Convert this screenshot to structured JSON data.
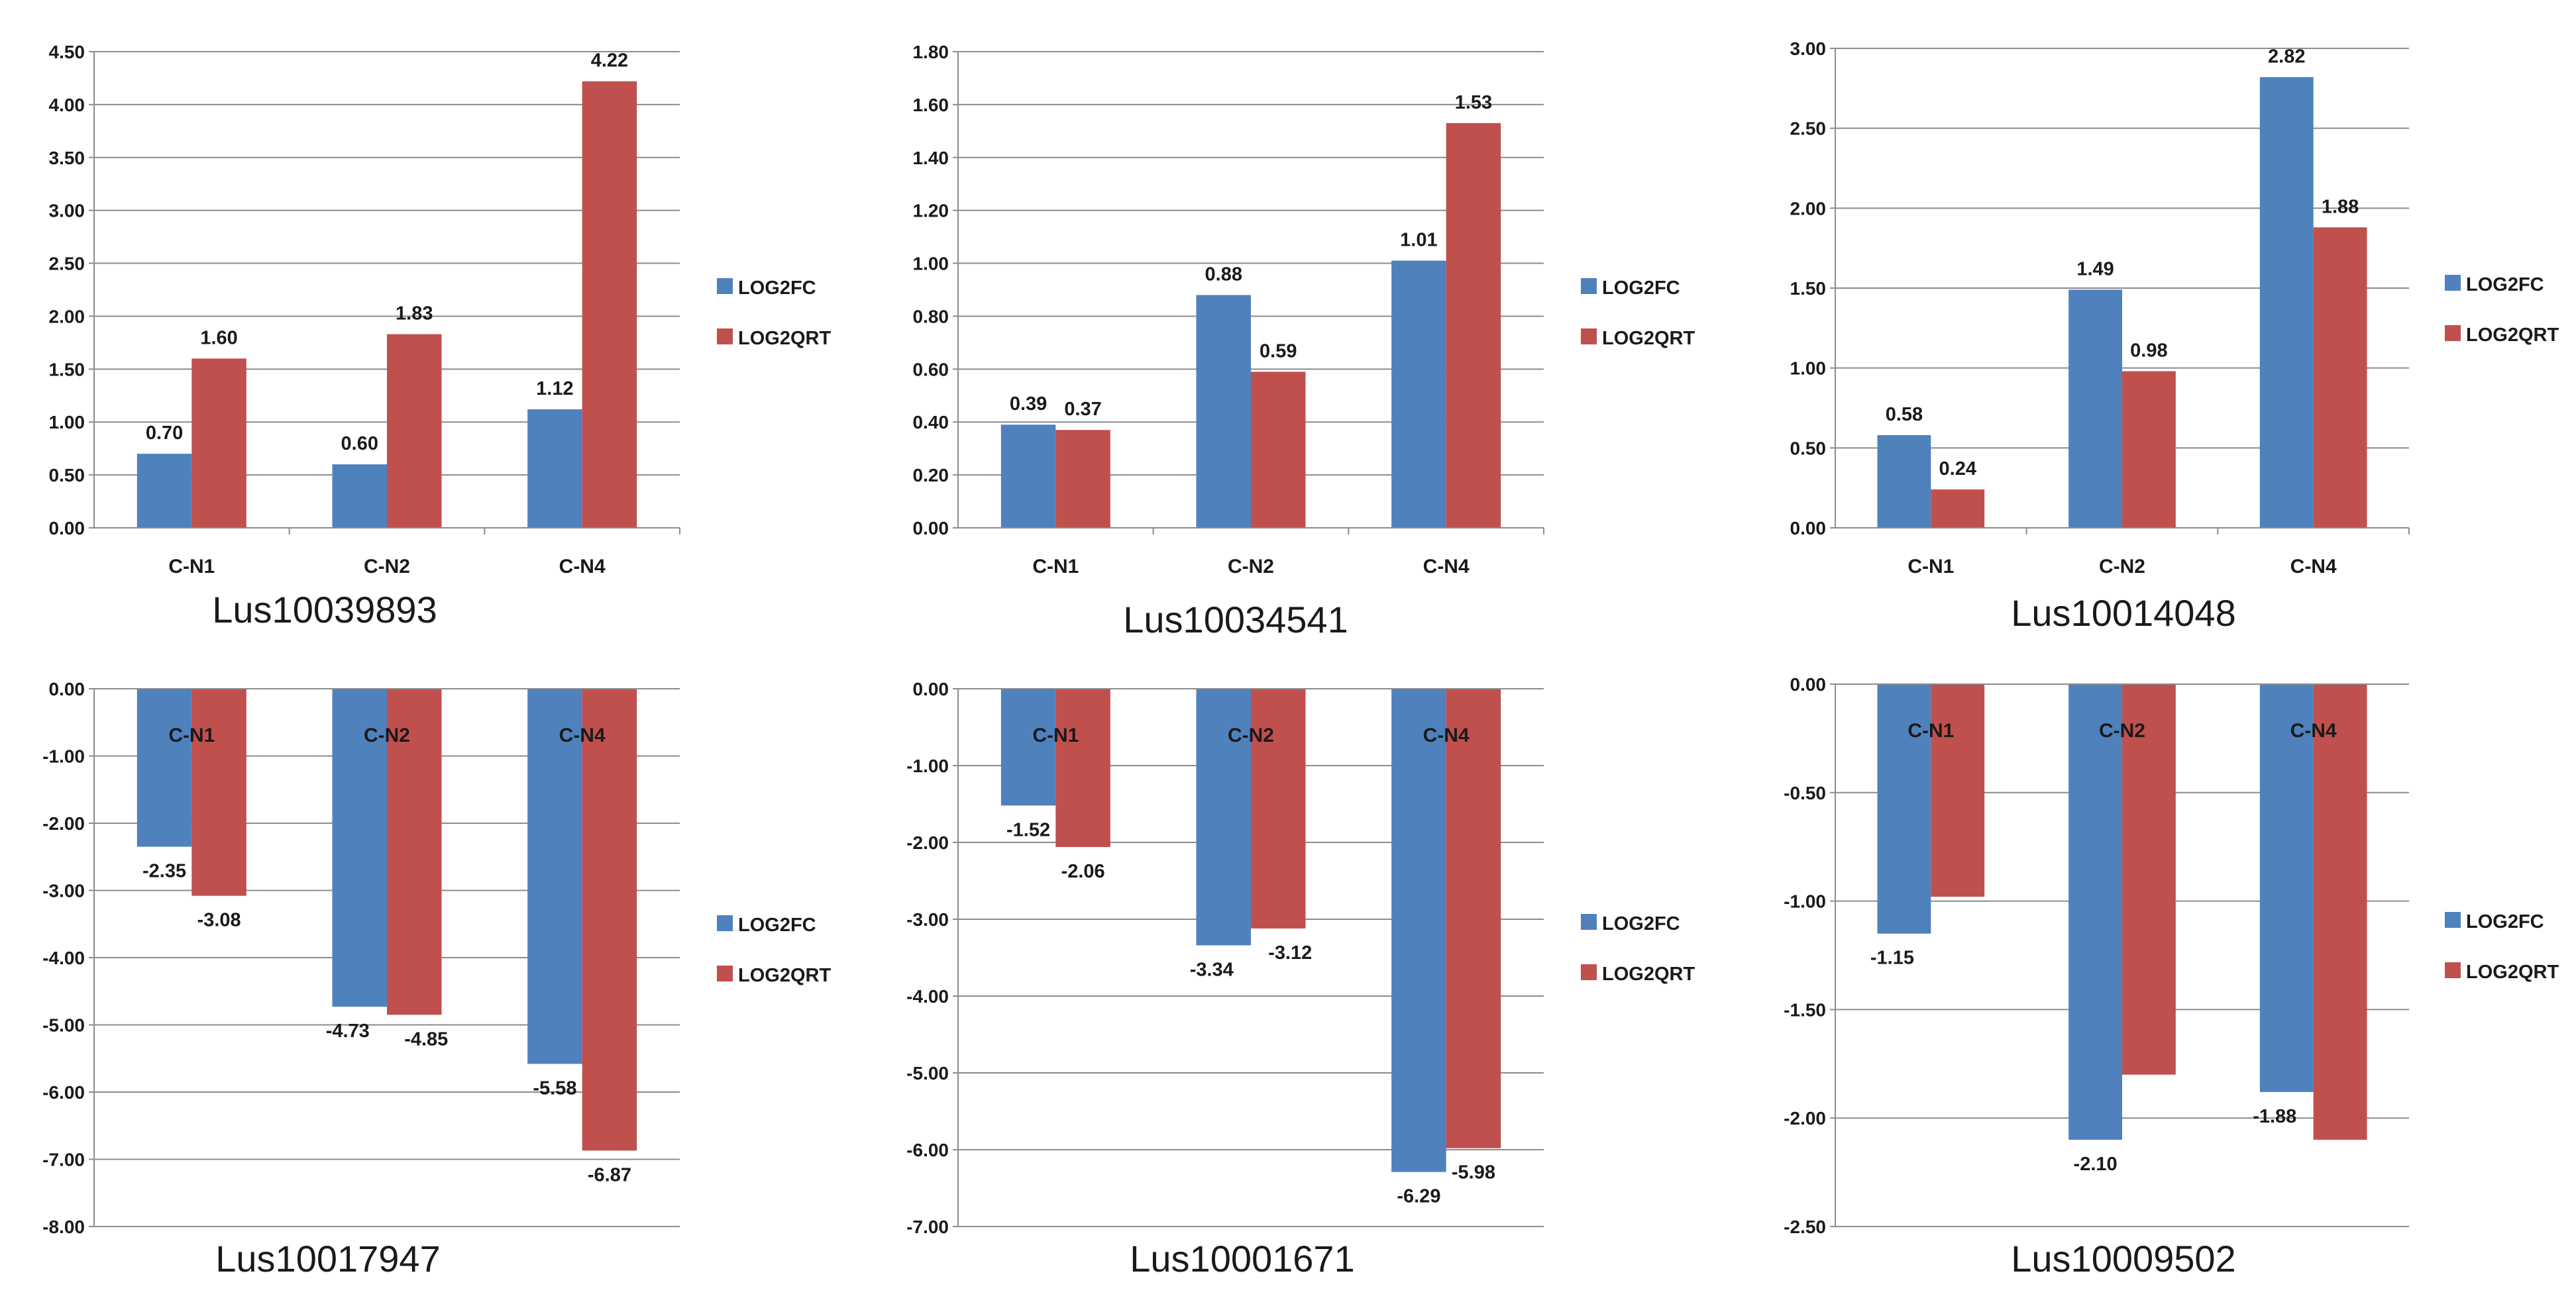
{
  "colors": {
    "LOG2FC": "#4F81BD",
    "LOG2QRT": "#C0504D",
    "grid": "#8C8C8C",
    "axis": "#8C8C8C"
  },
  "chart_data": [
    {
      "type": "bar",
      "title": "Lus10039893",
      "categories": [
        "C-N1",
        "C-N2",
        "C-N4"
      ],
      "series": [
        {
          "name": "LOG2FC",
          "values": [
            0.7,
            0.6,
            1.12
          ],
          "labels": [
            "0.70",
            "0.60",
            "1.12"
          ]
        },
        {
          "name": "LOG2QRT",
          "values": [
            1.6,
            1.83,
            4.22
          ],
          "labels": [
            "1.60",
            "1.83",
            "4.22"
          ]
        }
      ],
      "ylim": [
        0,
        4.5
      ],
      "ystep": 0.5,
      "yticks": [
        "0.00",
        "0.50",
        "1.00",
        "1.50",
        "2.00",
        "2.50",
        "3.00",
        "3.50",
        "4.00",
        "4.50"
      ],
      "legend": "right"
    },
    {
      "type": "bar",
      "title": "Lus10034541",
      "categories": [
        "C-N1",
        "C-N2",
        "C-N4"
      ],
      "series": [
        {
          "name": "LOG2FC",
          "values": [
            0.39,
            0.88,
            1.01
          ],
          "labels": [
            "0.39",
            "0.88",
            "1.01"
          ]
        },
        {
          "name": "LOG2QRT",
          "values": [
            0.37,
            0.59,
            1.53
          ],
          "labels": [
            "0.37",
            "0.59",
            "1.53"
          ]
        }
      ],
      "ylim": [
        0,
        1.8
      ],
      "ystep": 0.2,
      "yticks": [
        "0.00",
        "0.20",
        "0.40",
        "0.60",
        "0.80",
        "1.00",
        "1.20",
        "1.40",
        "1.60",
        "1.80"
      ],
      "legend": "right"
    },
    {
      "type": "bar",
      "title": "Lus10014048",
      "categories": [
        "C-N1",
        "C-N2",
        "C-N4"
      ],
      "series": [
        {
          "name": "LOG2FC",
          "values": [
            0.58,
            1.49,
            2.82
          ],
          "labels": [
            "0.58",
            "1.49",
            "2.82"
          ]
        },
        {
          "name": "LOG2QRT",
          "values": [
            0.24,
            0.98,
            1.88
          ],
          "labels": [
            "0.24",
            "0.98",
            "1.88"
          ]
        }
      ],
      "ylim": [
        0,
        3.0
      ],
      "ystep": 0.5,
      "yticks": [
        "0.00",
        "0.50",
        "1.00",
        "1.50",
        "2.00",
        "2.50",
        "3.00"
      ],
      "legend": "right"
    },
    {
      "type": "bar",
      "title": "Lus10017947",
      "categories": [
        "C-N1",
        "C-N2",
        "C-N4"
      ],
      "series": [
        {
          "name": "LOG2FC",
          "values": [
            -2.35,
            -4.73,
            -5.58
          ],
          "labels": [
            "-2.35",
            "-4.73",
            "-5.58"
          ]
        },
        {
          "name": "LOG2QRT",
          "values": [
            -3.08,
            -4.85,
            -6.87
          ],
          "labels": [
            "-3.08",
            "-4.85",
            "-6.87"
          ]
        }
      ],
      "ylim": [
        -8,
        0
      ],
      "ystep": 1,
      "yticks": [
        "0.00",
        "-1.00",
        "-2.00",
        "-3.00",
        "-4.00",
        "-5.00",
        "-6.00",
        "-7.00",
        "-8.00"
      ],
      "legend": "right"
    },
    {
      "type": "bar",
      "title": "Lus10001671",
      "categories": [
        "C-N1",
        "C-N2",
        "C-N4"
      ],
      "series": [
        {
          "name": "LOG2FC",
          "values": [
            -1.52,
            -3.34,
            -6.29
          ],
          "labels": [
            "-1.52",
            "-3.34",
            "-6.29"
          ]
        },
        {
          "name": "LOG2QRT",
          "values": [
            -2.06,
            -3.12,
            -5.98
          ],
          "labels": [
            "-2.06",
            "-3.12",
            "-5.98"
          ]
        }
      ],
      "ylim": [
        -7,
        0
      ],
      "ystep": 1,
      "yticks": [
        "0.00",
        "-1.00",
        "-2.00",
        "-3.00",
        "-4.00",
        "-5.00",
        "-6.00",
        "-7.00"
      ],
      "legend": "right"
    },
    {
      "type": "bar",
      "title": "Lus10009502",
      "categories": [
        "C-N1",
        "C-N2",
        "C-N4"
      ],
      "series": [
        {
          "name": "LOG2FC",
          "values": [
            -1.15,
            -2.1,
            -1.88
          ],
          "labels": [
            "-1.15",
            "-2.10",
            "-1.88"
          ]
        },
        {
          "name": "LOG2QRT",
          "values": [
            -0.98,
            -1.8,
            -2.1
          ],
          "labels": [
            "",
            "",
            ""
          ]
        }
      ],
      "ylim": [
        -2.5,
        0
      ],
      "ystep": 0.5,
      "yticks": [
        "0.00",
        "-0.50",
        "-1.00",
        "-1.50",
        "-2.00",
        "-2.50"
      ],
      "legend": "right"
    }
  ]
}
